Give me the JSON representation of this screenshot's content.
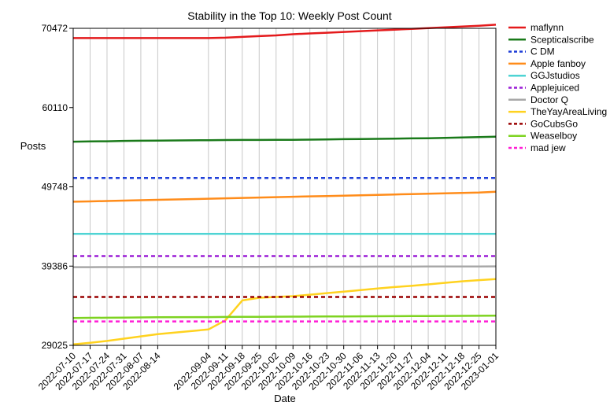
{
  "chart_data": {
    "type": "line",
    "title": "Stability in the Top 10: Weekly Post Count",
    "xlabel": "Date",
    "ylabel": "Posts",
    "x": [
      "2022-07-10",
      "2022-07-17",
      "2022-07-24",
      "2022-07-31",
      "2022-08-07",
      "2022-08-14",
      "2022-09-04",
      "2022-09-11",
      "2022-09-18",
      "2022-09-25",
      "2022-10-02",
      "2022-10-09",
      "2022-10-16",
      "2022-10-23",
      "2022-10-30",
      "2022-11-06",
      "2022-11-13",
      "2022-11-20",
      "2022-11-27",
      "2022-12-04",
      "2022-12-11",
      "2022-12-18",
      "2022-12-25",
      "2023-01-01"
    ],
    "yticks": [
      "29025",
      "39386",
      "49748",
      "60110",
      "70472"
    ],
    "ylim": [
      29025,
      70472
    ],
    "grid": "vertical",
    "legend_position": "right",
    "series": [
      {
        "name": "maflynn",
        "color": "#e41a1c",
        "dash": "solid",
        "values": [
          69200,
          69200,
          69200,
          69200,
          69200,
          69200,
          69200,
          69250,
          69350,
          69450,
          69550,
          69700,
          69800,
          69900,
          70000,
          70100,
          70200,
          70300,
          70400,
          70500,
          70600,
          70700,
          70800,
          70950
        ]
      },
      {
        "name": "Scepticalscribe",
        "color": "#1a7a1a",
        "dash": "solid",
        "values": [
          55650,
          55680,
          55700,
          55750,
          55780,
          55800,
          55850,
          55870,
          55880,
          55880,
          55890,
          55900,
          55920,
          55950,
          55980,
          56000,
          56020,
          56050,
          56080,
          56100,
          56150,
          56200,
          56250,
          56300
        ]
      },
      {
        "name": "C DM",
        "color": "#1f3fd8",
        "dash": "dashed",
        "values": [
          50900,
          50900,
          50900,
          50900,
          50900,
          50900,
          50900,
          50900,
          50900,
          50900,
          50900,
          50900,
          50900,
          50900,
          50900,
          50900,
          50900,
          50900,
          50900,
          50900,
          50900,
          50900,
          50900,
          50900
        ]
      },
      {
        "name": "Apple fanboy",
        "color": "#ff8c1a",
        "dash": "solid",
        "values": [
          47800,
          47850,
          47900,
          47950,
          48000,
          48050,
          48200,
          48250,
          48300,
          48350,
          48400,
          48450,
          48500,
          48550,
          48600,
          48650,
          48700,
          48750,
          48800,
          48850,
          48900,
          48950,
          49000,
          49100
        ]
      },
      {
        "name": "GGJstudios",
        "color": "#4fd4d4",
        "dash": "solid",
        "values": [
          43600,
          43600,
          43600,
          43600,
          43600,
          43600,
          43600,
          43600,
          43600,
          43600,
          43600,
          43600,
          43600,
          43600,
          43600,
          43600,
          43600,
          43600,
          43600,
          43600,
          43600,
          43600,
          43600,
          43600
        ]
      },
      {
        "name": "Applejuiced",
        "color": "#9b1fd6",
        "dash": "dashed",
        "values": [
          40700,
          40700,
          40700,
          40700,
          40700,
          40700,
          40700,
          40700,
          40700,
          40700,
          40700,
          40700,
          40700,
          40700,
          40700,
          40700,
          40700,
          40700,
          40700,
          40700,
          40700,
          40700,
          40700,
          40700
        ]
      },
      {
        "name": "Doctor Q",
        "color": "#a8a8a8",
        "dash": "solid",
        "values": [
          39250,
          39250,
          39260,
          39260,
          39270,
          39270,
          39280,
          39280,
          39290,
          39290,
          39300,
          39300,
          39300,
          39310,
          39310,
          39310,
          39320,
          39320,
          39320,
          39330,
          39330,
          39330,
          39340,
          39350
        ]
      },
      {
        "name": "TheYayAreaLiving",
        "color": "#ffd21f",
        "dash": "solid",
        "values": [
          29150,
          29350,
          29600,
          29900,
          30200,
          30500,
          31100,
          32300,
          34900,
          35250,
          35350,
          35450,
          35650,
          35850,
          36050,
          36250,
          36450,
          36650,
          36800,
          37000,
          37200,
          37400,
          37550,
          37700
        ]
      },
      {
        "name": "GoCubsGo",
        "color": "#990000",
        "dash": "dashed",
        "values": [
          35350,
          35350,
          35350,
          35350,
          35350,
          35350,
          35350,
          35350,
          35350,
          35350,
          35350,
          35350,
          35350,
          35350,
          35350,
          35350,
          35350,
          35350,
          35350,
          35350,
          35350,
          35350,
          35350,
          35350
        ]
      },
      {
        "name": "Weaselboy",
        "color": "#7ed321",
        "dash": "solid",
        "values": [
          32600,
          32620,
          32640,
          32660,
          32680,
          32700,
          32720,
          32740,
          32750,
          32760,
          32770,
          32780,
          32790,
          32800,
          32810,
          32820,
          32830,
          32840,
          32850,
          32860,
          32870,
          32880,
          32890,
          32900
        ]
      },
      {
        "name": "mad jew",
        "color": "#ff1fd6",
        "dash": "dashed",
        "values": [
          32150,
          32150,
          32150,
          32150,
          32150,
          32150,
          32150,
          32150,
          32150,
          32150,
          32150,
          32150,
          32150,
          32150,
          32150,
          32150,
          32150,
          32150,
          32150,
          32150,
          32150,
          32150,
          32150,
          32150
        ]
      }
    ]
  }
}
